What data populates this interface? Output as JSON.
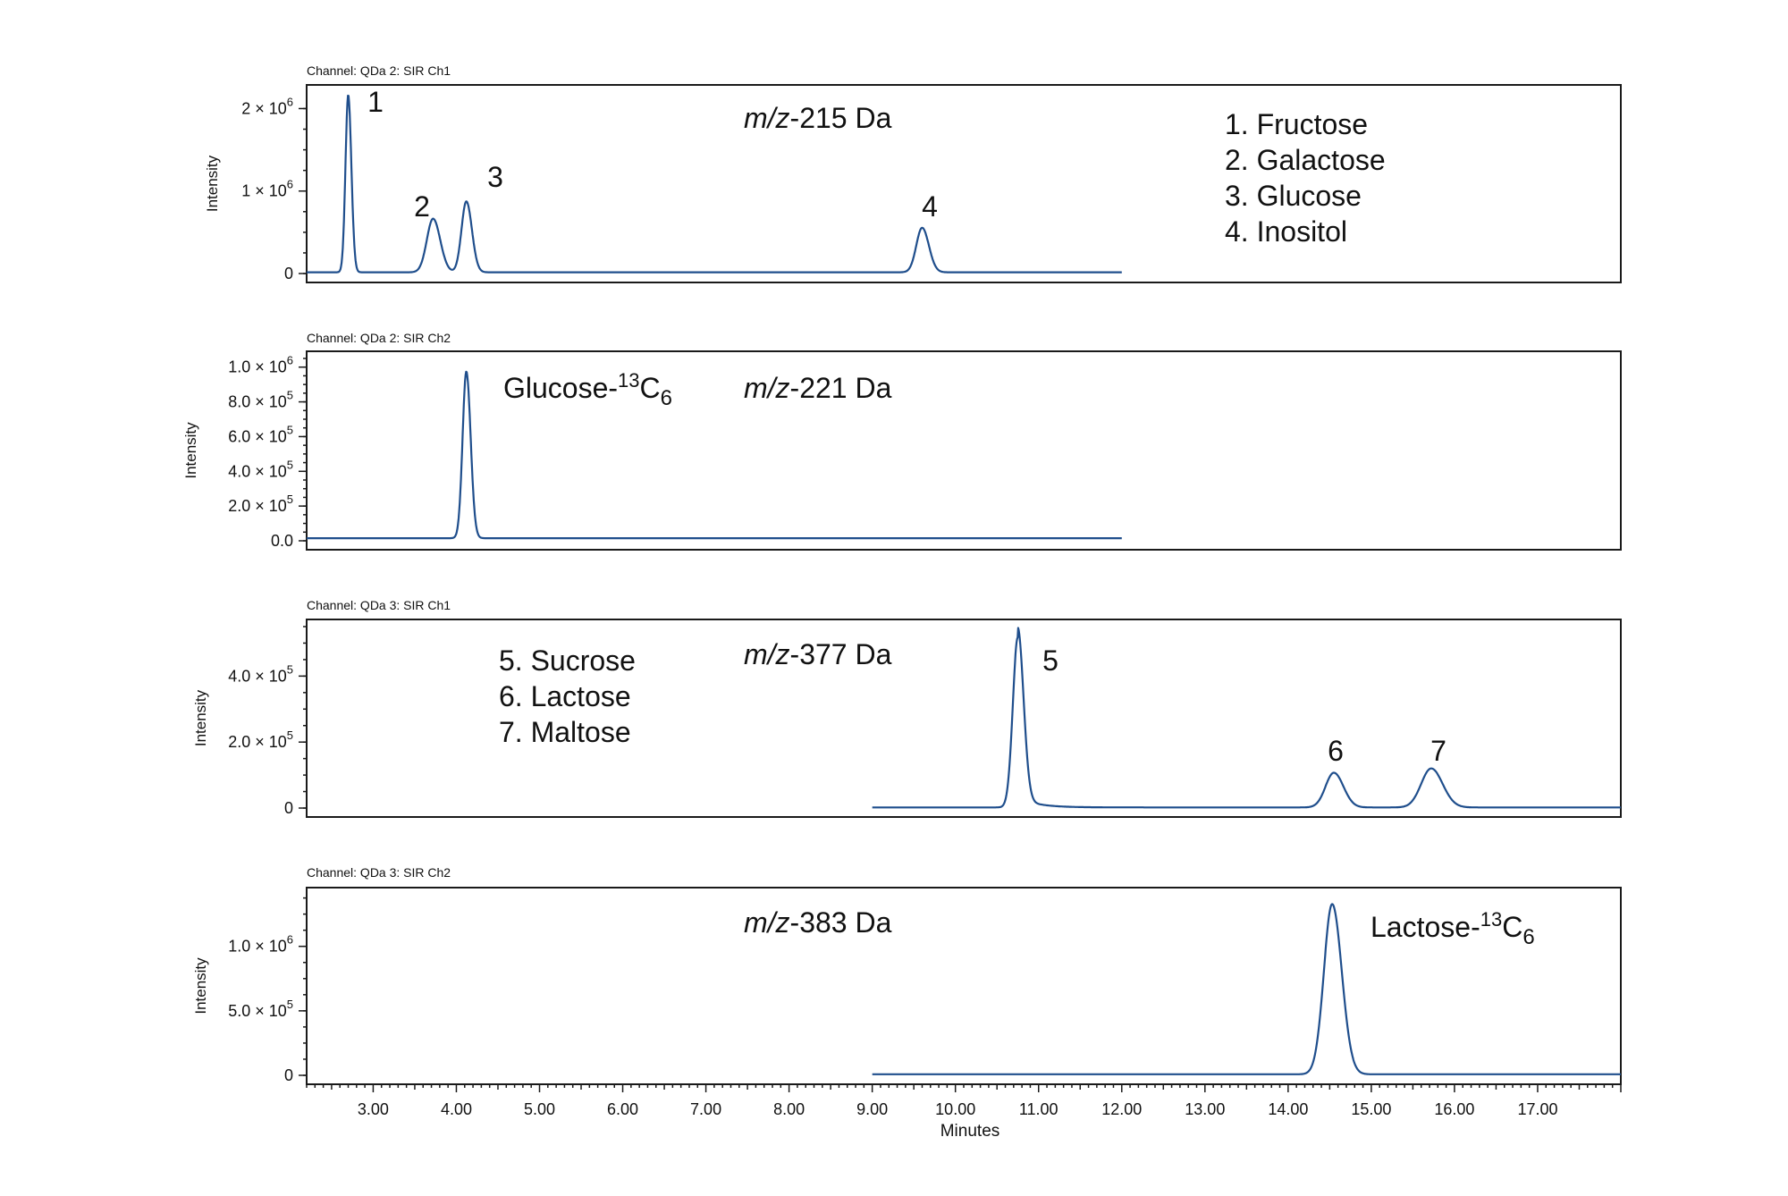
{
  "chart_data": [
    {
      "type": "line",
      "channel_label": "Channel: QDa 2: SIR Ch1",
      "ylabel": "Intensity",
      "mz_prefix": "m/z",
      "mz_suffix": "-215 Da",
      "xlim": [
        2.2,
        18.0
      ],
      "ylim": [
        0,
        2200000
      ],
      "yticks": [
        {
          "value": 0,
          "mantissa": "0",
          "exponent": ""
        },
        {
          "value": 1000000,
          "mantissa": "1 × 10",
          "exponent": "6"
        },
        {
          "value": 2000000,
          "mantissa": "2 × 10",
          "exponent": "6"
        }
      ],
      "trace_range": [
        2.2,
        12.0
      ],
      "baseline": 15000,
      "peaks": [
        {
          "label": "1",
          "rt": 2.7,
          "height": 2150000,
          "width": 0.033
        },
        {
          "label": "2",
          "rt": 3.72,
          "height": 650000,
          "width": 0.075
        },
        {
          "label": "3",
          "rt": 4.12,
          "height": 860000,
          "width": 0.058
        },
        {
          "label": "4",
          "rt": 9.6,
          "height": 540000,
          "width": 0.07
        }
      ],
      "legend": [
        "1. Fructose",
        "2. Galactose",
        "3. Glucose",
        "4. Inositol"
      ]
    },
    {
      "type": "line",
      "channel_label": "Channel: QDa 2: SIR Ch2",
      "ylabel": "Intensity",
      "mz_prefix": "m/z",
      "mz_suffix": "-221 Da",
      "compound": {
        "name": "Glucose",
        "sep": "-",
        "isotope": "13",
        "element": "C",
        "count": "6"
      },
      "xlim": [
        2.2,
        18.0
      ],
      "ylim": [
        0,
        1050000
      ],
      "yticks": [
        {
          "value": 0,
          "mantissa": "0.0",
          "exponent": ""
        },
        {
          "value": 200000,
          "mantissa": "2.0 × 10",
          "exponent": "5"
        },
        {
          "value": 400000,
          "mantissa": "4.0 × 10",
          "exponent": "5"
        },
        {
          "value": 600000,
          "mantissa": "6.0 × 10",
          "exponent": "5"
        },
        {
          "value": 800000,
          "mantissa": "8.0 × 10",
          "exponent": "5"
        },
        {
          "value": 1000000,
          "mantissa": "1.0 × 10",
          "exponent": "6"
        }
      ],
      "trace_range": [
        2.2,
        12.0
      ],
      "baseline": 15000,
      "peaks": [
        {
          "label": "",
          "rt": 4.12,
          "height": 960000,
          "width": 0.045
        }
      ]
    },
    {
      "type": "line",
      "channel_label": "Channel: QDa 3: SIR Ch1",
      "ylabel": "Intensity",
      "mz_prefix": "m/z",
      "mz_suffix": "-377 Da",
      "xlim": [
        2.2,
        18.0
      ],
      "ylim": [
        0,
        550000
      ],
      "yticks": [
        {
          "value": 0,
          "mantissa": "0",
          "exponent": ""
        },
        {
          "value": 200000,
          "mantissa": "2.0 × 10",
          "exponent": "5"
        },
        {
          "value": 400000,
          "mantissa": "4.0 × 10",
          "exponent": "5"
        }
      ],
      "trace_range": [
        9.0,
        18.0
      ],
      "baseline": 2000,
      "peaks": [
        {
          "label": "5",
          "rt": 10.75,
          "height": 515000,
          "width": 0.06,
          "tail": 0.22
        },
        {
          "label": "6",
          "rt": 14.55,
          "height": 105000,
          "width": 0.1
        },
        {
          "label": "7",
          "rt": 15.72,
          "height": 118000,
          "width": 0.12
        }
      ],
      "legend": [
        "5. Sucrose",
        "6. Lactose",
        "7. Maltose"
      ]
    },
    {
      "type": "line",
      "channel_label": "Channel: QDa 3: SIR Ch2",
      "ylabel": "Intensity",
      "xlabel": "Minutes",
      "mz_prefix": "m/z",
      "mz_suffix": "-383 Da",
      "compound": {
        "name": "Lactose",
        "sep": "-",
        "isotope": "13",
        "element": "C",
        "count": "6"
      },
      "xlim": [
        2.2,
        18.0
      ],
      "ylim": [
        0,
        1400000
      ],
      "yticks": [
        {
          "value": 0,
          "mantissa": "0",
          "exponent": ""
        },
        {
          "value": 500000,
          "mantissa": "5.0 × 10",
          "exponent": "5"
        },
        {
          "value": 1000000,
          "mantissa": "1.0 × 10",
          "exponent": "6"
        }
      ],
      "xticks": [
        "3.00",
        "4.00",
        "5.00",
        "6.00",
        "7.00",
        "8.00",
        "9.00",
        "10.00",
        "11.00",
        "12.00",
        "13.00",
        "14.00",
        "15.00",
        "16.00",
        "17.00"
      ],
      "trace_range": [
        9.0,
        18.0
      ],
      "baseline": 8000,
      "peaks": [
        {
          "label": "",
          "rt": 14.53,
          "height": 1320000,
          "width": 0.1
        }
      ]
    }
  ]
}
